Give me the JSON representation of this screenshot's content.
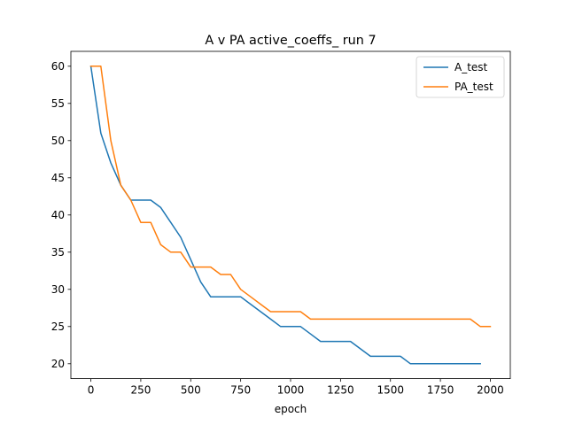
{
  "chart_data": {
    "type": "line",
    "title": "A v PA active_coeffs_ run 7",
    "xlabel": "epoch",
    "ylabel": "",
    "xlim": [
      -100,
      2100
    ],
    "ylim": [
      18.0,
      62.0
    ],
    "xticks": [
      0,
      250,
      500,
      750,
      1000,
      1250,
      1500,
      1750,
      2000
    ],
    "yticks": [
      20,
      25,
      30,
      35,
      40,
      45,
      50,
      55,
      60
    ],
    "grid": false,
    "legend_position": "top-right",
    "series": [
      {
        "name": "A_test",
        "color": "#1f77b4",
        "x": [
          0,
          50,
          100,
          150,
          200,
          250,
          300,
          350,
          400,
          450,
          500,
          550,
          600,
          650,
          700,
          750,
          800,
          850,
          900,
          950,
          1000,
          1050,
          1100,
          1150,
          1200,
          1250,
          1300,
          1350,
          1400,
          1450,
          1500,
          1550,
          1600,
          1650,
          1700,
          1750,
          1800,
          1850,
          1900,
          1950
        ],
        "values": [
          60,
          51,
          47,
          44,
          42,
          42,
          42,
          41,
          39,
          37,
          34,
          31,
          29,
          29,
          29,
          29,
          28,
          27,
          26,
          25,
          25,
          25,
          24,
          23,
          23,
          23,
          23,
          22,
          21,
          21,
          21,
          21,
          20,
          20,
          20,
          20,
          20,
          20,
          20,
          20
        ]
      },
      {
        "name": "PA_test",
        "color": "#ff7f0e",
        "x": [
          0,
          50,
          100,
          150,
          200,
          250,
          300,
          350,
          400,
          450,
          500,
          550,
          600,
          650,
          700,
          750,
          800,
          850,
          900,
          950,
          1000,
          1050,
          1100,
          1150,
          1200,
          1250,
          1300,
          1350,
          1400,
          1450,
          1500,
          1550,
          1600,
          1650,
          1700,
          1750,
          1800,
          1850,
          1900,
          1950,
          2000
        ],
        "values": [
          60,
          60,
          50,
          44,
          42,
          39,
          39,
          36,
          35,
          35,
          33,
          33,
          33,
          32,
          32,
          30,
          29,
          28,
          27,
          27,
          27,
          27,
          26,
          26,
          26,
          26,
          26,
          26,
          26,
          26,
          26,
          26,
          26,
          26,
          26,
          26,
          26,
          26,
          26,
          25,
          25
        ]
      }
    ]
  }
}
